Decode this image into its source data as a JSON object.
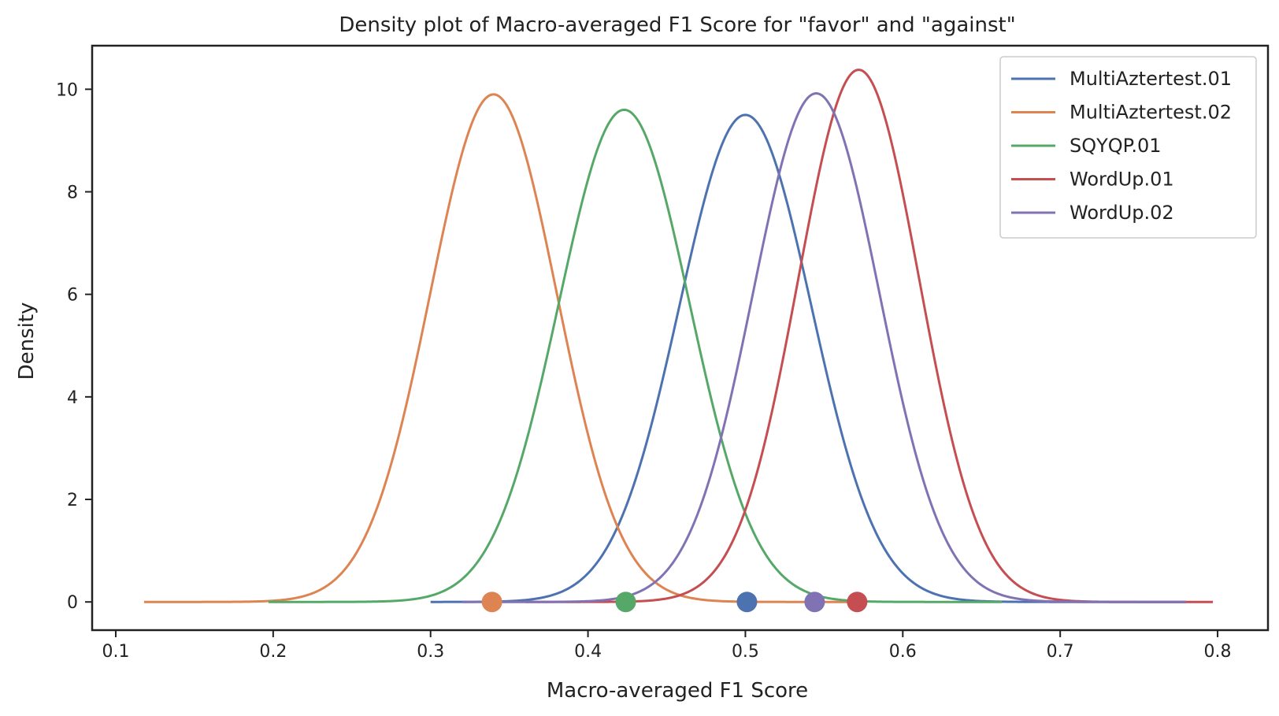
{
  "chart_data": {
    "type": "line",
    "title": "Density plot of Macro-averaged F1 Score for \"favor\" and \"against\"",
    "xlabel": "Macro-averaged F1 Score",
    "ylabel": "Density",
    "xlim": [
      0.085,
      0.832
    ],
    "ylim": [
      -0.55,
      10.85
    ],
    "xticks": [
      0.1,
      0.2,
      0.3,
      0.4,
      0.5,
      0.6,
      0.7,
      0.8
    ],
    "xtick_labels": [
      "0.1",
      "0.2",
      "0.3",
      "0.4",
      "0.5",
      "0.6",
      "0.7",
      "0.8"
    ],
    "yticks": [
      0,
      2,
      4,
      6,
      8,
      10
    ],
    "ytick_labels": [
      "0",
      "2",
      "4",
      "6",
      "8",
      "10"
    ],
    "grid": false,
    "legend_position": "top-right",
    "series": [
      {
        "name": "MultiAztertest.01",
        "color": "#4c72b0",
        "mean": 0.5,
        "peak": 9.5,
        "x_range": [
          0.3,
          0.78
        ],
        "marker_x": 0.501
      },
      {
        "name": "MultiAztertest.02",
        "color": "#dd8452",
        "mean": 0.34,
        "peak": 9.9,
        "x_range": [
          0.118,
          0.57
        ],
        "marker_x": 0.339
      },
      {
        "name": "SQYQP.01",
        "color": "#55a868",
        "mean": 0.423,
        "peak": 9.6,
        "x_range": [
          0.197,
          0.663
        ],
        "marker_x": 0.424
      },
      {
        "name": "WordUp.01",
        "color": "#c44e52",
        "mean": 0.572,
        "peak": 10.38,
        "x_range": [
          0.36,
          0.797
        ],
        "marker_x": 0.571
      },
      {
        "name": "WordUp.02",
        "color": "#8172b3",
        "mean": 0.545,
        "peak": 9.92,
        "x_range": [
          0.32,
          0.78
        ],
        "marker_x": 0.544
      }
    ]
  }
}
